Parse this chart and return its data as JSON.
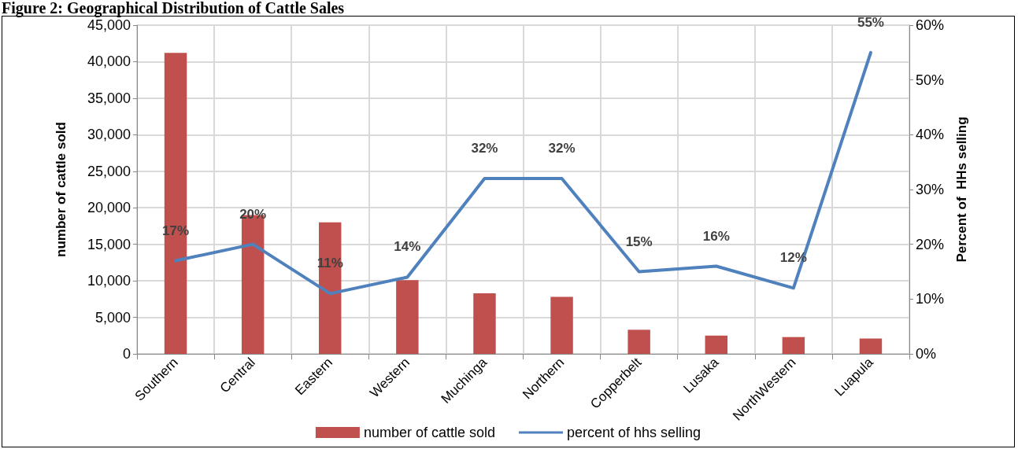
{
  "chart_data": {
    "type": "bar",
    "title": "Figure 2: Geographical Distribution of Cattle Sales",
    "ylabel": "number of cattle sold",
    "y2label": "Percent of  HHs selling",
    "categories": [
      "Southern",
      "Central",
      "Eastern",
      "Western",
      "Muchinga",
      "Northern",
      "Copperbelt",
      "Lusaka",
      "NorthWestern",
      "Luapula"
    ],
    "series": [
      {
        "name": "number of cattle sold",
        "color": "#c0504d",
        "values": [
          41200,
          19000,
          18000,
          10100,
          8300,
          7800,
          3300,
          2500,
          2300,
          2100
        ]
      },
      {
        "name": "percent of hhs selling",
        "type": "line",
        "axis": "y2",
        "color": "#4f81bd",
        "values": [
          17,
          20,
          11,
          14,
          32,
          32,
          15,
          16,
          12,
          55
        ],
        "value_labels": [
          "17%",
          "20%",
          "11%",
          "14%",
          "32%",
          "32%",
          "15%",
          "16%",
          "12%",
          "55%"
        ]
      }
    ],
    "ylim": [
      0,
      45000
    ],
    "yticks": [
      {
        "value": 0,
        "label": "0"
      },
      {
        "value": 5000,
        "label": "5,000"
      },
      {
        "value": 10000,
        "label": "10,000"
      },
      {
        "value": 15000,
        "label": "15,000"
      },
      {
        "value": 20000,
        "label": "20,000"
      },
      {
        "value": 25000,
        "label": "25,000"
      },
      {
        "value": 30000,
        "label": "30,000"
      },
      {
        "value": 35000,
        "label": "35,000"
      },
      {
        "value": 40000,
        "label": "40,000"
      },
      {
        "value": 45000,
        "label": "45,000"
      }
    ],
    "y2lim": [
      0,
      60
    ],
    "y2ticks": [
      {
        "value": 0,
        "label": "0%"
      },
      {
        "value": 10,
        "label": "10%"
      },
      {
        "value": 20,
        "label": "20%"
      },
      {
        "value": 30,
        "label": "30%"
      },
      {
        "value": 40,
        "label": "40%"
      },
      {
        "value": 50,
        "label": "50%"
      },
      {
        "value": 60,
        "label": "60%"
      }
    ],
    "grid": true,
    "legend": "bottom",
    "marker": "none",
    "line_style": "solid"
  }
}
